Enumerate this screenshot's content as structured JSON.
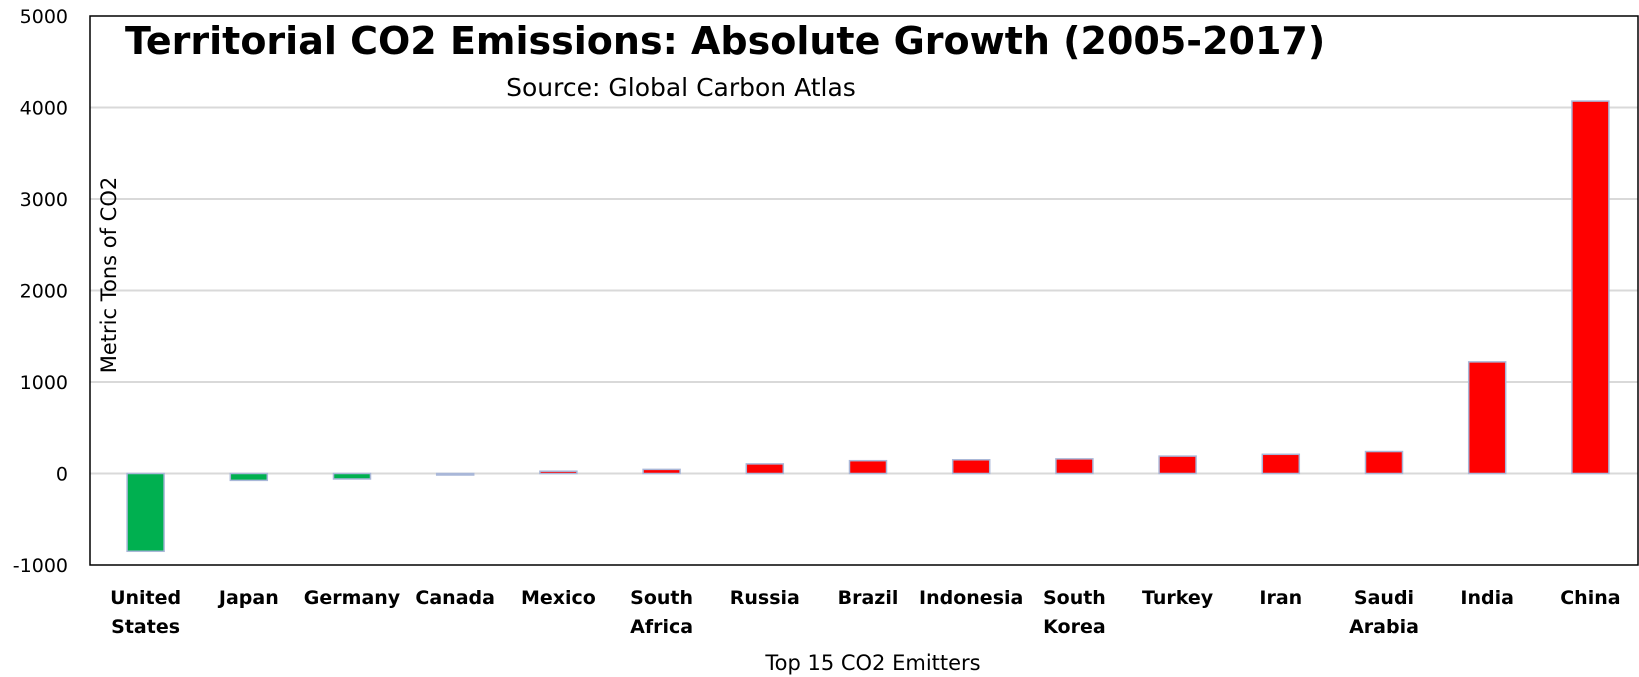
{
  "chart_data": {
    "type": "bar",
    "title": "Territorial CO2 Emissions: Absolute Growth (2005-2017)",
    "subtitle": "Source: Global Carbon Atlas",
    "xlabel": "Top 15 CO2 Emitters",
    "ylabel": "Metric Tons of CO2",
    "ylim": [
      -1000,
      5000
    ],
    "yticks": [
      -1000,
      0,
      1000,
      2000,
      3000,
      4000,
      5000
    ],
    "grid": true,
    "categories": [
      [
        "United",
        "States"
      ],
      [
        "Japan"
      ],
      [
        "Germany"
      ],
      [
        "Canada"
      ],
      [
        "Mexico"
      ],
      [
        "South",
        "Africa"
      ],
      [
        "Russia"
      ],
      [
        "Brazil"
      ],
      [
        "Indonesia"
      ],
      [
        "South",
        "Korea"
      ],
      [
        "Turkey"
      ],
      [
        "Iran"
      ],
      [
        "Saudi",
        "Arabia"
      ],
      [
        "India"
      ],
      [
        "China"
      ]
    ],
    "values": [
      -850,
      -75,
      -60,
      -10,
      25,
      45,
      105,
      140,
      150,
      160,
      190,
      210,
      240,
      1220,
      4070
    ],
    "colors": {
      "negative": "#00b050",
      "positive": "#ff0000",
      "bar_border": "#a9b7d8",
      "grid": "#d9d9d9",
      "frame": "#000000"
    }
  }
}
